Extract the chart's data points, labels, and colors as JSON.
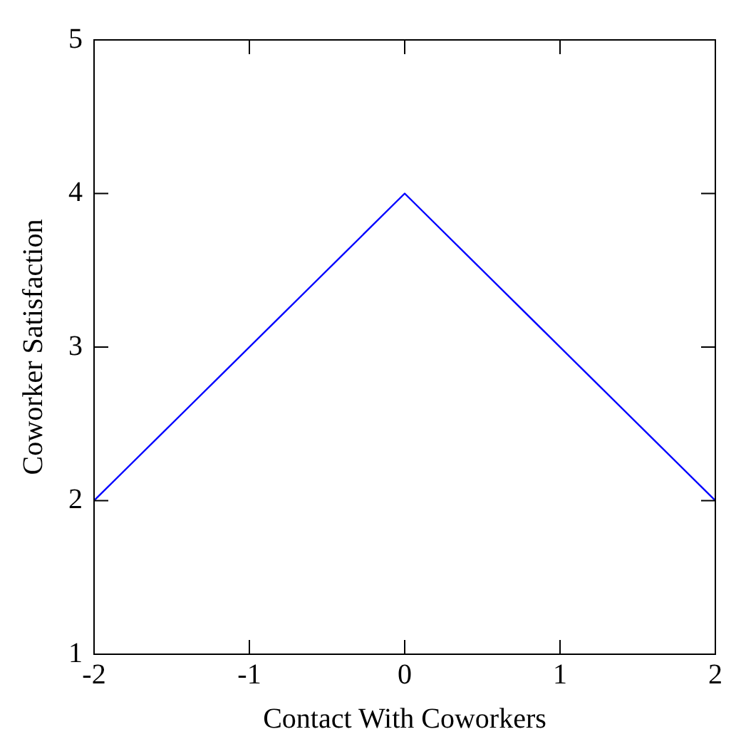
{
  "chart_data": {
    "type": "line",
    "xlabel": "Contact With Coworkers",
    "ylabel": "Coworker Satisfaction",
    "x": [
      -2,
      0,
      2
    ],
    "series": [
      {
        "color": "#0000ff",
        "values": [
          2,
          4,
          2
        ]
      }
    ],
    "xlim": [
      -2,
      2
    ],
    "xticks": [
      -2,
      -1,
      0,
      1,
      2
    ],
    "ylim": [
      1,
      5
    ],
    "yticks": [
      1,
      2,
      3,
      4,
      5
    ],
    "grid": false,
    "legend": false,
    "marker": "none",
    "line_style": "solid"
  }
}
